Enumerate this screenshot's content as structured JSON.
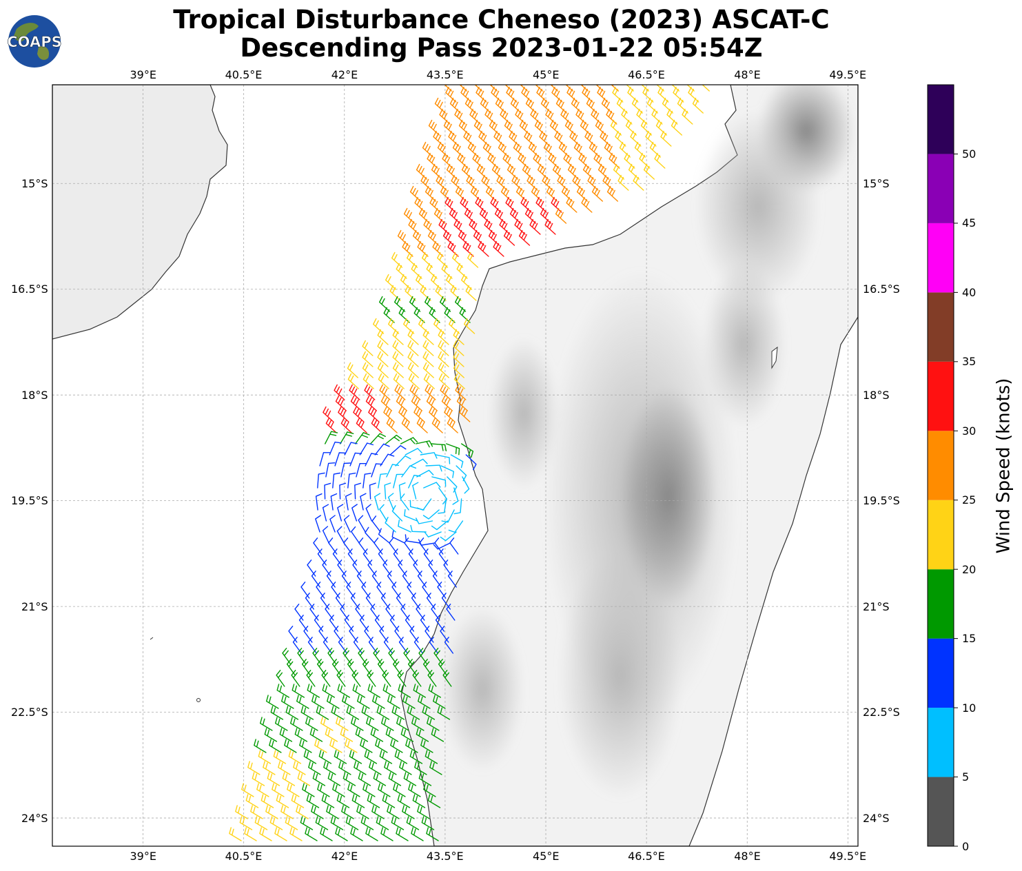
{
  "title": {
    "line1": "Tropical Disturbance Cheneso (2023) ASCAT-C",
    "line2": "Descending Pass 2023-01-22 05:54Z"
  },
  "logo": {
    "text": "COAPS",
    "icon": "globe-icon"
  },
  "map": {
    "lon_range": [
      37.65,
      49.65
    ],
    "lat_range": [
      -24.4,
      -13.6
    ],
    "lon_labels": [
      "39°E",
      "40.5°E",
      "42°E",
      "43.5°E",
      "45°E",
      "46.5°E",
      "48°E",
      "49.5°E"
    ],
    "lon_values": [
      39,
      40.5,
      42,
      43.5,
      45,
      46.5,
      48,
      49.5
    ],
    "lat_labels": [
      "15°S",
      "16.5°S",
      "18°S",
      "19.5°S",
      "21°S",
      "22.5°S",
      "24°S"
    ],
    "lat_values": [
      -15,
      -16.5,
      -18,
      -19.5,
      -21,
      -22.5,
      -24
    ],
    "gridlines": true,
    "background": "grayscale terrain",
    "features": [
      "Mozambique coast",
      "Madagascar",
      "Mozambique Channel"
    ]
  },
  "colorbar": {
    "label": "Wind Speed (knots)",
    "ticks": [
      "0",
      "5",
      "10",
      "15",
      "20",
      "25",
      "30",
      "35",
      "40",
      "45",
      "50"
    ],
    "tick_values": [
      0,
      5,
      10,
      15,
      20,
      25,
      30,
      35,
      40,
      45,
      50
    ],
    "max": 55,
    "bins": [
      {
        "range": [
          0,
          5
        ],
        "color": "#555555"
      },
      {
        "range": [
          5,
          10
        ],
        "color": "#00bfff"
      },
      {
        "range": [
          10,
          15
        ],
        "color": "#0033ff"
      },
      {
        "range": [
          15,
          20
        ],
        "color": "#009900"
      },
      {
        "range": [
          20,
          25
        ],
        "color": "#ffd316"
      },
      {
        "range": [
          25,
          30
        ],
        "color": "#ff8c00"
      },
      {
        "range": [
          30,
          35
        ],
        "color": "#ff1111"
      },
      {
        "range": [
          35,
          40
        ],
        "color": "#823d27"
      },
      {
        "range": [
          40,
          45
        ],
        "color": "#ff00f6"
      },
      {
        "range": [
          45,
          50
        ],
        "color": "#8a00b5"
      },
      {
        "range": [
          50,
          55
        ],
        "color": "#2e0059"
      }
    ]
  }
}
